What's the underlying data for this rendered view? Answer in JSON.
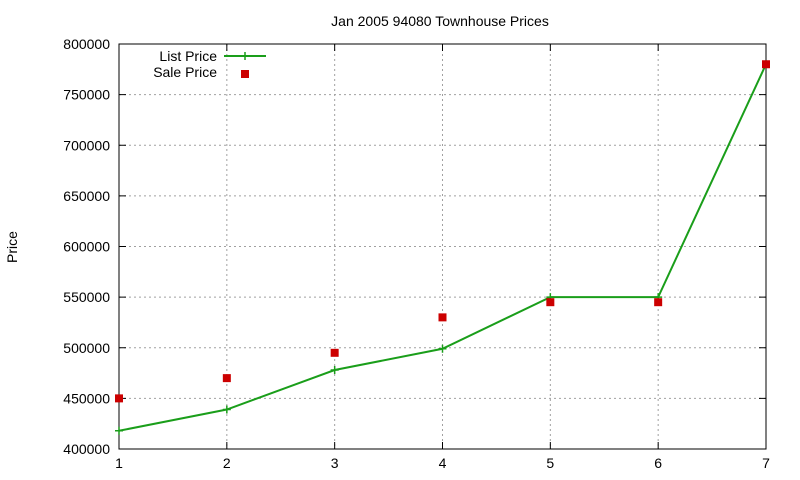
{
  "chart_data": {
    "type": "line",
    "title": "Jan 2005 94080 Townhouse Prices",
    "xlabel": "",
    "ylabel": "Price",
    "xlim": [
      1,
      7
    ],
    "ylim": [
      400000,
      800000
    ],
    "xticks": [
      "1",
      "2",
      "3",
      "4",
      "5",
      "6",
      "7"
    ],
    "yticks": [
      "400000",
      "450000",
      "500000",
      "550000",
      "600000",
      "650000",
      "700000",
      "750000",
      "800000"
    ],
    "grid": true,
    "legend_position": "top-left",
    "x": [
      1,
      2,
      3,
      4,
      5,
      6,
      7
    ],
    "series": [
      {
        "name": "List Price",
        "style": "linespoints",
        "marker": "plus",
        "color": "#1a9e1a",
        "values": [
          418000,
          439000,
          478000,
          499000,
          550000,
          550000,
          780000
        ]
      },
      {
        "name": "Sale Price",
        "style": "points",
        "marker": "square",
        "color": "#cc0000",
        "values": [
          450000,
          470000,
          495000,
          530000,
          545000,
          545000,
          780000
        ]
      }
    ]
  }
}
